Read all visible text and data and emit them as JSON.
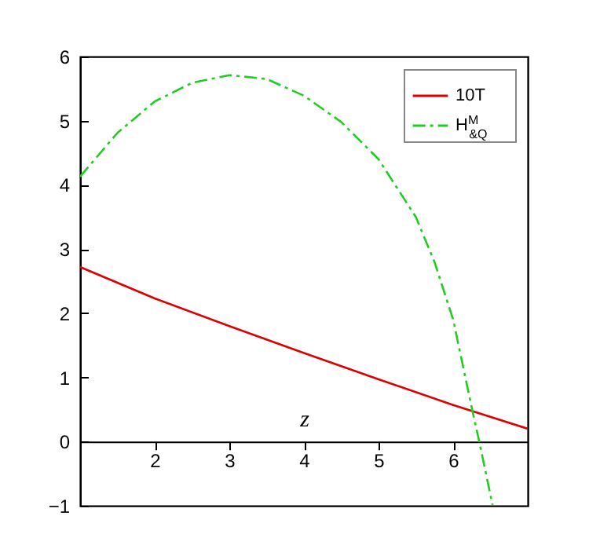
{
  "chart_data": {
    "type": "line",
    "xlabel": "z",
    "xlim": [
      1,
      7
    ],
    "xticks": [
      2,
      3,
      4,
      5,
      6
    ],
    "ylim": [
      -1,
      6
    ],
    "yticks": [
      -1,
      0,
      1,
      2,
      3,
      4,
      5,
      6
    ],
    "grid": false,
    "legend": "top right",
    "marker": "none",
    "series": [
      {
        "name": "10T",
        "color": "#dd0000",
        "line_style": "solid",
        "x": [
          1,
          2,
          3,
          4,
          5,
          6,
          7
        ],
        "values": [
          2.72,
          2.23,
          1.8,
          1.38,
          0.97,
          0.57,
          0.2
        ]
      },
      {
        "name": "H$^{M}$$_{&Q}$",
        "color": "#22cc22",
        "line_style": "dashdot",
        "x": [
          1,
          1.5,
          2,
          2.5,
          3,
          3.5,
          4,
          4.5,
          5,
          5.5,
          5.75,
          6,
          6.26,
          6.35,
          6.53
        ],
        "values": [
          4.13,
          4.81,
          5.3,
          5.59,
          5.71,
          5.65,
          5.39,
          4.98,
          4.4,
          3.5,
          2.8,
          1.9,
          0.47,
          0,
          -1
        ]
      }
    ]
  }
}
